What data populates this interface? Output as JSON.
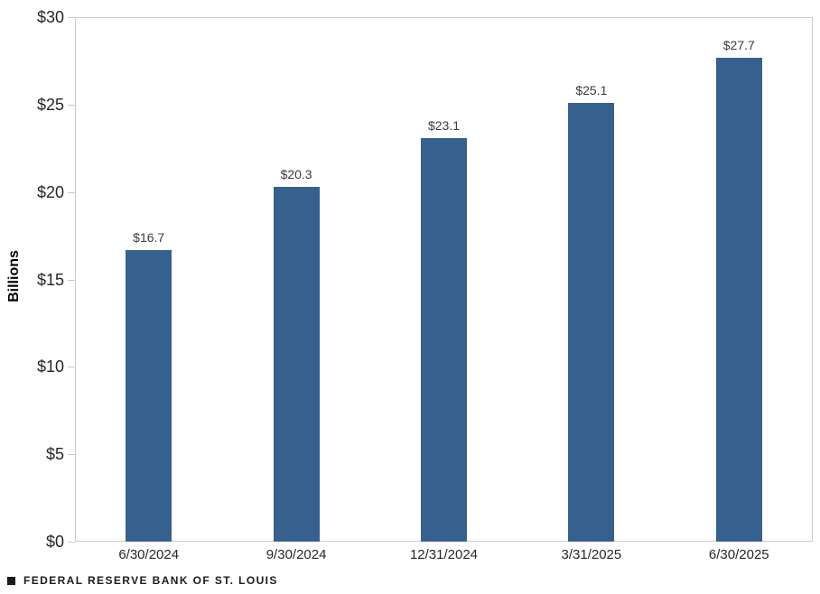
{
  "chart_data": {
    "type": "bar",
    "categories": [
      "6/30/2024",
      "9/30/2024",
      "12/31/2024",
      "3/31/2025",
      "6/30/2025"
    ],
    "values": [
      16.7,
      20.3,
      23.1,
      25.1,
      27.7
    ],
    "value_labels": [
      "$16.7",
      "$20.3",
      "$23.1",
      "$25.1",
      "$27.7"
    ],
    "title": "",
    "xlabel": "",
    "ylabel": "Billions",
    "ylim": [
      0,
      30
    ],
    "ytick_step": 5,
    "ytick_labels": [
      "$0",
      "$5",
      "$10",
      "$15",
      "$20",
      "$25",
      "$30"
    ],
    "grid": false,
    "legend_position": "none",
    "bar_color": "#36618F",
    "axis_color": "#C9C9C9",
    "text_color": "#262626",
    "value_label_color": "#3B3B3B"
  },
  "footer": {
    "source_icon": "black-square-marker",
    "text": "FEDERAL RESERVE BANK OF ST. LOUIS"
  }
}
